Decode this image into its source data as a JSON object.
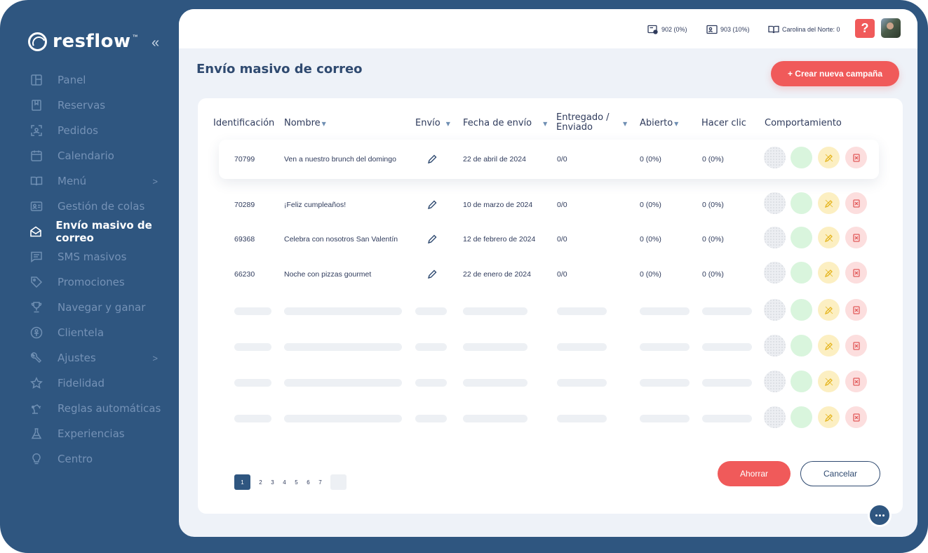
{
  "brand": {
    "name": "resflow",
    "tm": "™"
  },
  "sidebar": {
    "collapse_icon": "double-chevron-left-icon",
    "items": [
      {
        "label": "Panel",
        "icon": "layout-icon"
      },
      {
        "label": "Reservas",
        "icon": "bookmark-icon"
      },
      {
        "label": "Pedidos",
        "icon": "scan-icon"
      },
      {
        "label": "Calendario",
        "icon": "calendar-icon"
      },
      {
        "label": "Menú",
        "icon": "book-icon",
        "arrow": ">"
      },
      {
        "label": "Gestión de colas",
        "icon": "id-card-icon"
      },
      {
        "label": "Envío masivo de correo",
        "icon": "mail-icon",
        "active": true
      },
      {
        "label": "SMS masivos",
        "icon": "message-icon"
      },
      {
        "label": "Promociones",
        "icon": "tag-icon"
      },
      {
        "label": "Navegar y ganar",
        "icon": "trophy-icon"
      },
      {
        "label": "Clientela",
        "icon": "person-circle-icon"
      },
      {
        "label": "Ajustes",
        "icon": "wrench-icon",
        "arrow": ">"
      },
      {
        "label": "Fidelidad",
        "icon": "star-icon"
      },
      {
        "label": "Reglas automáticas",
        "icon": "robot-arm-icon"
      },
      {
        "label": "Experiencias",
        "icon": "flask-icon"
      },
      {
        "label": "Centro",
        "icon": "lightbulb-icon"
      }
    ]
  },
  "topbar": {
    "stat1": "902 (0%)",
    "stat2": "903 (10%)",
    "location": "Carolina del Norte: 0",
    "help": "?"
  },
  "page": {
    "title": "Envío masivo de correo",
    "create_button": "+ Crear nueva campaña"
  },
  "table": {
    "headers": {
      "id": "Identificación",
      "name": "Nombre",
      "send": "Envío",
      "date": "Fecha de envío",
      "delivered_line1": "Entregado /",
      "delivered_line2": "Enviado",
      "opened": "Abierto",
      "clicks": "Hacer clic",
      "behavior": "Comportamiento"
    },
    "rows": [
      {
        "id": "70799",
        "name": "Ven a nuestro brunch del domingo",
        "date": "22 de abril de 2024",
        "delivered": "0/0",
        "opened": "0 (0%)",
        "clicks": "0 (0%)"
      },
      {
        "id": "70289",
        "name": "¡Feliz cumpleaños!",
        "date": "10 de marzo de 2024",
        "delivered": "0/0",
        "opened": "0 (0%)",
        "clicks": "0 (0%)"
      },
      {
        "id": "69368",
        "name": "Celebra con nosotros San Valentín",
        "date": "12 de febrero de 2024",
        "delivered": "0/0",
        "opened": "0 (0%)",
        "clicks": "0 (0%)"
      },
      {
        "id": "66230",
        "name": "Noche con pizzas gourmet",
        "date": "22 de enero de 2024",
        "delivered": "0/0",
        "opened": "0 (0%)",
        "clicks": "0 (0%)"
      }
    ]
  },
  "pagination": {
    "pages": [
      "1",
      "2",
      "3",
      "4",
      "5",
      "6",
      "7"
    ],
    "current": "1"
  },
  "footer": {
    "save": "Ahorrar",
    "cancel": "Cancelar"
  },
  "colors": {
    "brand_navy": "#2f5680",
    "accent_red": "#f05a5a",
    "panel_bg": "#eef2f8"
  }
}
